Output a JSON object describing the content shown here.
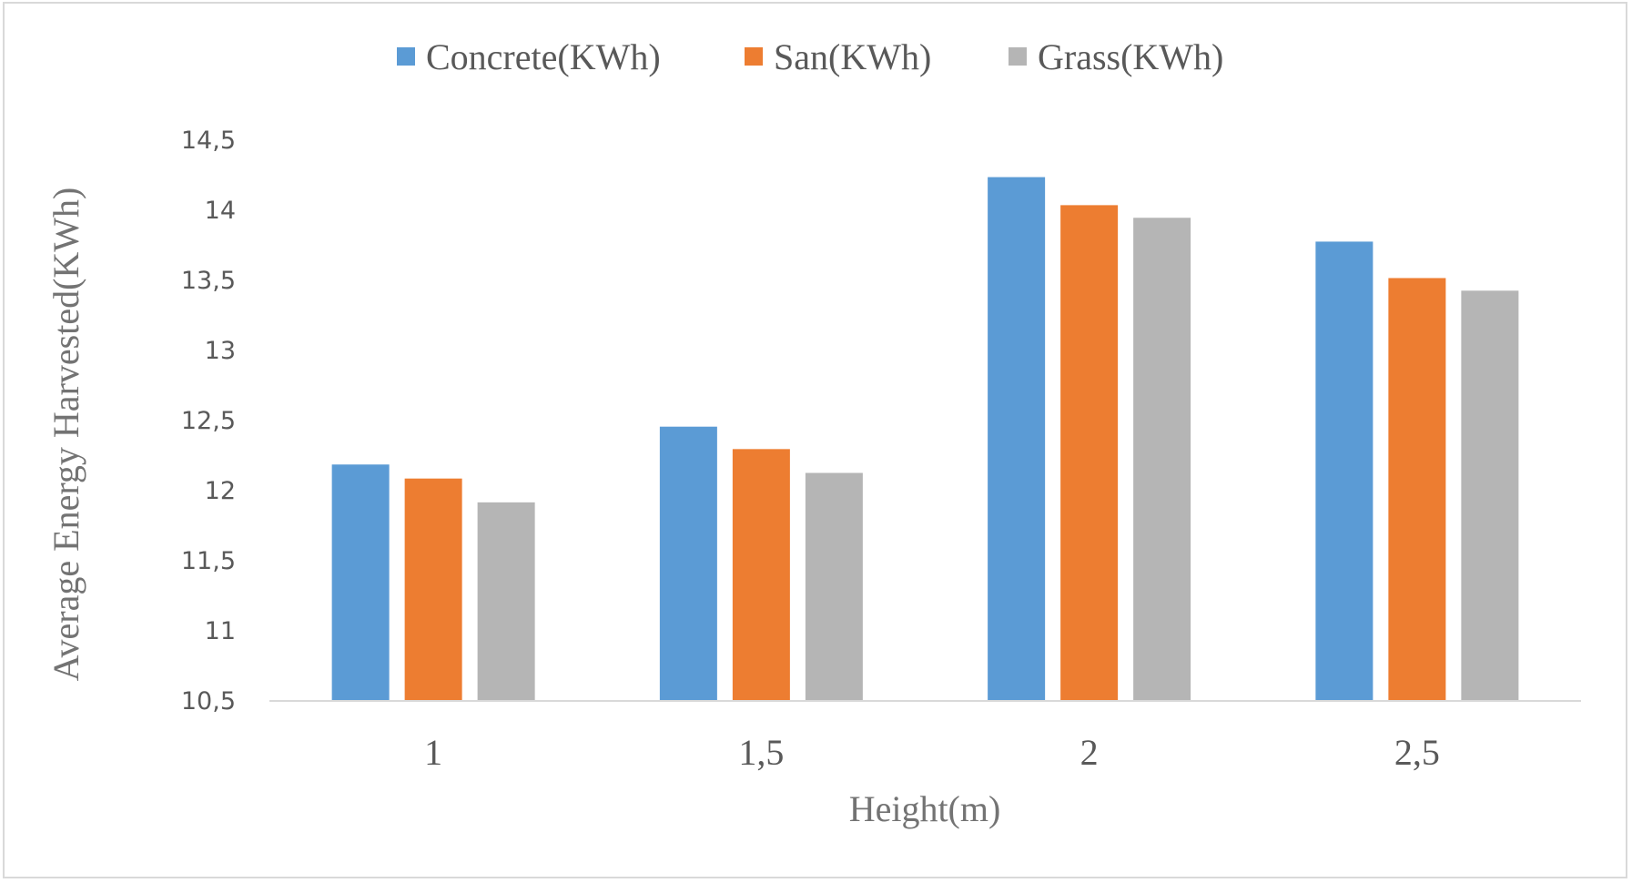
{
  "chart_data": {
    "type": "bar",
    "title": "",
    "xlabel": "Height(m)",
    "ylabel": "Average Energy Harvested(KWh)",
    "categories": [
      "1",
      "1,5",
      "2",
      "2,5"
    ],
    "ylim": [
      10.5,
      14.5
    ],
    "yticks": [
      10.5,
      11,
      11.5,
      12,
      12.5,
      13,
      13.5,
      14,
      14.5
    ],
    "ytick_labels": [
      "10,5",
      "11",
      "11,5",
      "12",
      "12,5",
      "13",
      "13,5",
      "14",
      "14,5"
    ],
    "grid": false,
    "legend_position": "top-center",
    "series": [
      {
        "name": "Concrete(KWh)",
        "color": "#5B9BD5",
        "values": [
          12.18,
          12.45,
          14.23,
          13.77
        ]
      },
      {
        "name": "San(KWh)",
        "color": "#ED7D31",
        "values": [
          12.08,
          12.29,
          14.03,
          13.51
        ]
      },
      {
        "name": "Grass(KWh)",
        "color": "#B5B5B5",
        "values": [
          11.91,
          12.12,
          13.94,
          13.42
        ]
      }
    ]
  }
}
